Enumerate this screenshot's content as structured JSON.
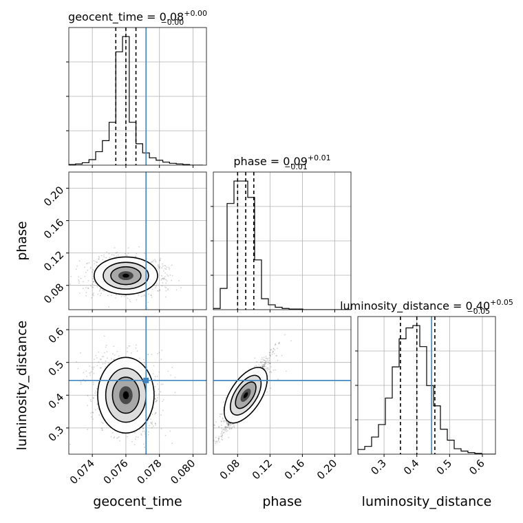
{
  "chart_data": {
    "type": "corner",
    "parameters": [
      "geocent_time",
      "phase",
      "luminosity_distance"
    ],
    "truths": {
      "geocent_time": 0.0772,
      "phase": null,
      "luminosity_distance": 0.445
    },
    "truth_color": "#3f86c2",
    "grid": true,
    "titles": {
      "geocent_time": {
        "prefix": "geocent_time = 0.08",
        "sup": "+0.00",
        "sub": "−0.00"
      },
      "phase": {
        "prefix": "phase = 0.09",
        "sup": "+0.01",
        "sub": "−0.01"
      },
      "luminosity_distance": {
        "prefix": "luminosity_distance = 0.40",
        "sup": "+0.05",
        "sub": "−0.05"
      }
    },
    "axes": {
      "geocent_time": {
        "range": [
          0.0726,
          0.0808
        ],
        "ticks": [
          0.074,
          0.076,
          0.078,
          0.08
        ],
        "tick_labels": [
          "0.074",
          "0.076",
          "0.078",
          "0.080"
        ]
      },
      "phase": {
        "range": [
          0.05,
          0.22
        ],
        "ticks": [
          0.08,
          0.12,
          0.16,
          0.2
        ],
        "tick_labels": [
          "0.08",
          "0.12",
          "0.16",
          "0.20"
        ]
      },
      "luminosity_distance": {
        "range": [
          0.22,
          0.64
        ],
        "ticks": [
          0.3,
          0.4,
          0.5,
          0.6
        ],
        "tick_labels": [
          "0.3",
          "0.4",
          "0.5",
          "0.6"
        ]
      }
    },
    "histograms": {
      "geocent_time": {
        "bin_edges": [
          0.0726,
          0.073,
          0.0734,
          0.0738,
          0.0742,
          0.0746,
          0.075,
          0.0754,
          0.0758,
          0.0762,
          0.0766,
          0.077,
          0.0774,
          0.0778,
          0.0782,
          0.0786,
          0.079,
          0.0794,
          0.0798,
          0.0802,
          0.0806
        ],
        "counts": [
          1,
          2,
          4,
          9,
          22,
          40,
          70,
          185,
          210,
          70,
          35,
          20,
          12,
          8,
          5,
          3,
          2,
          1,
          0,
          0
        ],
        "quantiles": [
          0.0754,
          0.076,
          0.0766
        ]
      },
      "phase": {
        "bin_edges": [
          0.05,
          0.0585,
          0.067,
          0.0755,
          0.084,
          0.0925,
          0.101,
          0.1095,
          0.118,
          0.1265,
          0.135,
          0.1435,
          0.152,
          0.1605,
          0.169,
          0.1775,
          0.186,
          0.1945,
          0.203,
          0.2115,
          0.22
        ],
        "counts": [
          2,
          35,
          175,
          212,
          212,
          185,
          82,
          18,
          8,
          4,
          2,
          1,
          1,
          0,
          0,
          0,
          0,
          0,
          0,
          0
        ],
        "quantiles": [
          0.08,
          0.09,
          0.1
        ]
      },
      "luminosity_distance": {
        "bin_edges": [
          0.22,
          0.241,
          0.262,
          0.283,
          0.304,
          0.325,
          0.346,
          0.367,
          0.388,
          0.409,
          0.43,
          0.451,
          0.472,
          0.493,
          0.514,
          0.535,
          0.556,
          0.577,
          0.598,
          0.619,
          0.64
        ],
        "counts": [
          6,
          10,
          22,
          38,
          72,
          112,
          148,
          162,
          165,
          138,
          88,
          62,
          32,
          18,
          7,
          4,
          2,
          1,
          0,
          0
        ],
        "quantiles": [
          0.35,
          0.4,
          0.455
        ]
      }
    }
  }
}
